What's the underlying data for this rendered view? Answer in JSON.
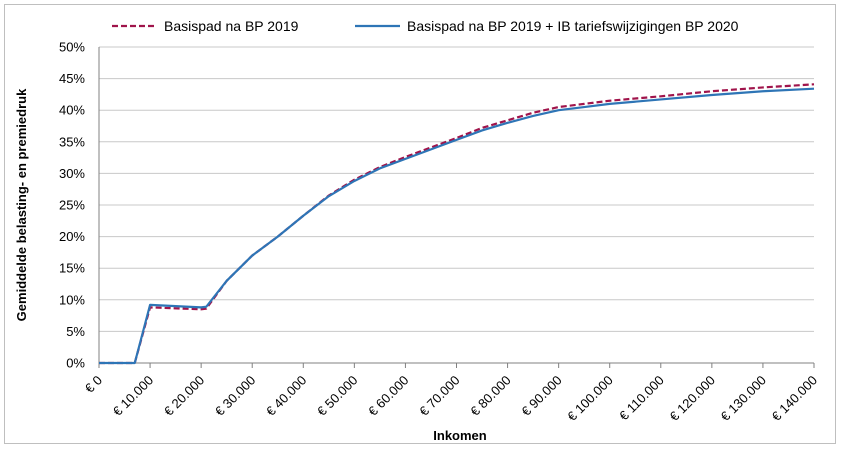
{
  "chart_data": {
    "type": "line",
    "xlabel": "Inkomen",
    "ylabel": "Gemiddelde belasting- en premiedruk",
    "xlim": [
      0,
      140000
    ],
    "ylim": [
      0,
      0.5
    ],
    "x_tick_labels": [
      "€ 0",
      "€ 10.000",
      "€ 20.000",
      "€ 30.000",
      "€ 40.000",
      "€ 50.000",
      "€ 60.000",
      "€ 70.000",
      "€ 80.000",
      "€ 90.000",
      "€ 100.000",
      "€ 110.000",
      "€ 120.000",
      "€ 130.000",
      "€ 140.000"
    ],
    "y_tick_labels": [
      "0%",
      "5%",
      "10%",
      "15%",
      "20%",
      "25%",
      "30%",
      "35%",
      "40%",
      "45%",
      "50%"
    ],
    "grid": "horizontal",
    "legend": "top",
    "series": [
      {
        "name": "Basispad na BP 2019",
        "color": "#a0144b",
        "style": "dashed",
        "x": [
          0,
          7000,
          10000,
          20000,
          21000,
          25000,
          30000,
          35000,
          40000,
          45000,
          50000,
          55000,
          60000,
          65000,
          70000,
          75000,
          80000,
          85000,
          90000,
          95000,
          100000,
          110000,
          120000,
          130000,
          140000
        ],
        "y": [
          0,
          0,
          0.088,
          0.085,
          0.086,
          0.13,
          0.17,
          0.2,
          0.233,
          0.265,
          0.29,
          0.31,
          0.326,
          0.341,
          0.356,
          0.372,
          0.384,
          0.396,
          0.405,
          0.41,
          0.415,
          0.422,
          0.43,
          0.436,
          0.441
        ]
      },
      {
        "name": "Basispad na BP 2019 + IB tariefswijzigingen BP 2020",
        "color": "#2e75b6",
        "style": "solid",
        "x": [
          0,
          7000,
          10000,
          20000,
          21000,
          25000,
          30000,
          35000,
          40000,
          45000,
          50000,
          55000,
          60000,
          65000,
          70000,
          75000,
          80000,
          85000,
          90000,
          95000,
          100000,
          110000,
          120000,
          130000,
          140000
        ],
        "y": [
          0,
          0,
          0.092,
          0.088,
          0.089,
          0.13,
          0.17,
          0.2,
          0.233,
          0.264,
          0.288,
          0.308,
          0.323,
          0.338,
          0.353,
          0.368,
          0.38,
          0.391,
          0.4,
          0.405,
          0.41,
          0.417,
          0.424,
          0.43,
          0.434
        ]
      }
    ]
  }
}
